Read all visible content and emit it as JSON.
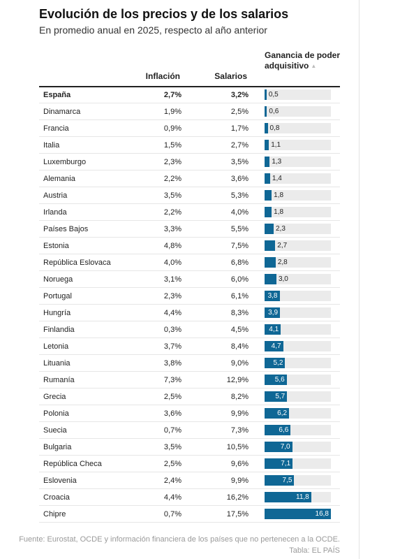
{
  "title": "Evolución de los precios y de los salarios",
  "subtitle": "En promedio anual en 2025, respecto al año anterior",
  "headers": {
    "inflacion": "Inflación",
    "salarios": "Salarios",
    "ganancia": "Ganancia de poder adquisitivo",
    "sort_icon": "▲"
  },
  "footer": {
    "source": "Fuente: Eurostat, OCDE y información financiera de los países que no pertenecen a la OCDE.",
    "credit": "Tabla: EL PAÍS"
  },
  "colors": {
    "bar": "#0f6795",
    "track": "#ebebeb"
  },
  "chart_data": {
    "type": "table",
    "title": "Evolución de los precios y de los salarios",
    "subtitle": "En promedio anual en 2025, respecto al año anterior",
    "columns": [
      "Inflación",
      "Salarios",
      "Ganancia de poder adquisitivo"
    ],
    "sorted_by": "Ganancia de poder adquisitivo",
    "bar_max": 16.8,
    "rows": [
      {
        "country": "España",
        "inflacion": "2,7%",
        "salarios": "3,2%",
        "ganancia": 0.5,
        "ganancia_label": "0,5",
        "highlight": true
      },
      {
        "country": "Dinamarca",
        "inflacion": "1,9%",
        "salarios": "2,5%",
        "ganancia": 0.6,
        "ganancia_label": "0,6"
      },
      {
        "country": "Francia",
        "inflacion": "0,9%",
        "salarios": "1,7%",
        "ganancia": 0.8,
        "ganancia_label": "0,8"
      },
      {
        "country": "Italia",
        "inflacion": "1,5%",
        "salarios": "2,7%",
        "ganancia": 1.1,
        "ganancia_label": "1,1"
      },
      {
        "country": "Luxemburgo",
        "inflacion": "2,3%",
        "salarios": "3,5%",
        "ganancia": 1.3,
        "ganancia_label": "1,3"
      },
      {
        "country": "Alemania",
        "inflacion": "2,2%",
        "salarios": "3,6%",
        "ganancia": 1.4,
        "ganancia_label": "1,4"
      },
      {
        "country": "Austria",
        "inflacion": "3,5%",
        "salarios": "5,3%",
        "ganancia": 1.8,
        "ganancia_label": "1,8"
      },
      {
        "country": "Irlanda",
        "inflacion": "2,2%",
        "salarios": "4,0%",
        "ganancia": 1.8,
        "ganancia_label": "1,8"
      },
      {
        "country": "Países Bajos",
        "inflacion": "3,3%",
        "salarios": "5,5%",
        "ganancia": 2.3,
        "ganancia_label": "2,3"
      },
      {
        "country": "Estonia",
        "inflacion": "4,8%",
        "salarios": "7,5%",
        "ganancia": 2.7,
        "ganancia_label": "2,7"
      },
      {
        "country": "República Eslovaca",
        "inflacion": "4,0%",
        "salarios": "6,8%",
        "ganancia": 2.8,
        "ganancia_label": "2,8"
      },
      {
        "country": "Noruega",
        "inflacion": "3,1%",
        "salarios": "6,0%",
        "ganancia": 3.0,
        "ganancia_label": "3,0"
      },
      {
        "country": "Portugal",
        "inflacion": "2,3%",
        "salarios": "6,1%",
        "ganancia": 3.8,
        "ganancia_label": "3,8"
      },
      {
        "country": "Hungría",
        "inflacion": "4,4%",
        "salarios": "8,3%",
        "ganancia": 3.9,
        "ganancia_label": "3,9"
      },
      {
        "country": "Finlandia",
        "inflacion": "0,3%",
        "salarios": "4,5%",
        "ganancia": 4.1,
        "ganancia_label": "4,1"
      },
      {
        "country": "Letonia",
        "inflacion": "3,7%",
        "salarios": "8,4%",
        "ganancia": 4.7,
        "ganancia_label": "4,7"
      },
      {
        "country": "Lituania",
        "inflacion": "3,8%",
        "salarios": "9,0%",
        "ganancia": 5.2,
        "ganancia_label": "5,2"
      },
      {
        "country": "Rumanía",
        "inflacion": "7,3%",
        "salarios": "12,9%",
        "ganancia": 5.6,
        "ganancia_label": "5,6"
      },
      {
        "country": "Grecia",
        "inflacion": "2,5%",
        "salarios": "8,2%",
        "ganancia": 5.7,
        "ganancia_label": "5,7"
      },
      {
        "country": "Polonia",
        "inflacion": "3,6%",
        "salarios": "9,9%",
        "ganancia": 6.2,
        "ganancia_label": "6,2"
      },
      {
        "country": "Suecia",
        "inflacion": "0,7%",
        "salarios": "7,3%",
        "ganancia": 6.6,
        "ganancia_label": "6,6"
      },
      {
        "country": "Bulgaria",
        "inflacion": "3,5%",
        "salarios": "10,5%",
        "ganancia": 7.0,
        "ganancia_label": "7,0"
      },
      {
        "country": "República Checa",
        "inflacion": "2,5%",
        "salarios": "9,6%",
        "ganancia": 7.1,
        "ganancia_label": "7,1"
      },
      {
        "country": "Eslovenia",
        "inflacion": "2,4%",
        "salarios": "9,9%",
        "ganancia": 7.5,
        "ganancia_label": "7,5"
      },
      {
        "country": "Croacia",
        "inflacion": "4,4%",
        "salarios": "16,2%",
        "ganancia": 11.8,
        "ganancia_label": "11,8"
      },
      {
        "country": "Chipre",
        "inflacion": "0,7%",
        "salarios": "17,5%",
        "ganancia": 16.8,
        "ganancia_label": "16,8"
      }
    ]
  }
}
